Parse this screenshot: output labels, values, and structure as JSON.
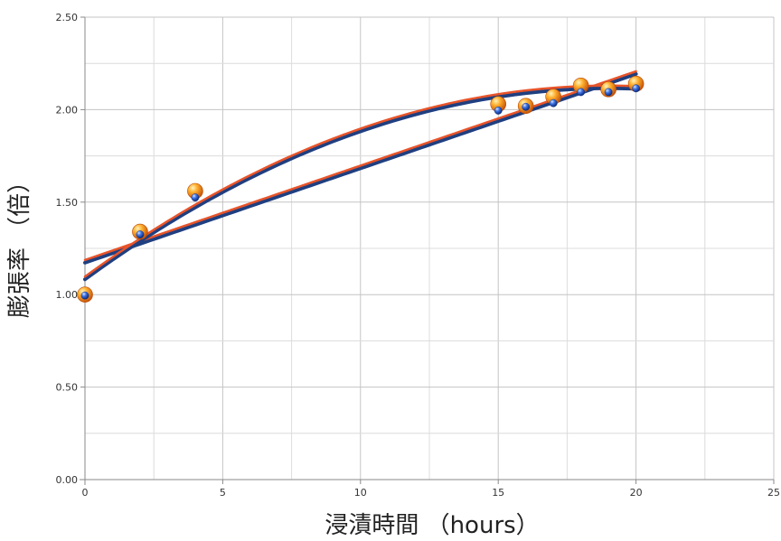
{
  "chart_data": {
    "type": "scatter",
    "xlabel": "浸漬時間 （hours）",
    "ylabel": "膨張率 （倍）",
    "xlim": [
      0,
      25
    ],
    "ylim": [
      0,
      2.5
    ],
    "x_ticks": [
      "0",
      "5",
      "10",
      "15",
      "20",
      "25"
    ],
    "y_ticks": [
      "0.00",
      "0.50",
      "1.00",
      "1.50",
      "2.00",
      "2.50"
    ],
    "grid": true,
    "minor_grid": true,
    "legend": "none",
    "series": [
      {
        "marker": "orange-sphere",
        "color": "#f5901e",
        "points": [
          {
            "x": 0,
            "y": 1.0
          },
          {
            "x": 2,
            "y": 1.34
          },
          {
            "x": 4,
            "y": 1.56
          },
          {
            "x": 15,
            "y": 2.03
          },
          {
            "x": 16,
            "y": 2.02
          },
          {
            "x": 17,
            "y": 2.07
          },
          {
            "x": 18,
            "y": 2.13
          },
          {
            "x": 19,
            "y": 2.11
          },
          {
            "x": 20,
            "y": 2.14
          }
        ]
      },
      {
        "marker": "blue-sphere",
        "color": "#2f5fcf",
        "points": [
          {
            "x": 0,
            "y": 1.0
          },
          {
            "x": 2,
            "y": 1.33
          },
          {
            "x": 4,
            "y": 1.53
          },
          {
            "x": 15,
            "y": 2.0
          },
          {
            "x": 16,
            "y": 2.02
          },
          {
            "x": 17,
            "y": 2.04
          },
          {
            "x": 18,
            "y": 2.1
          },
          {
            "x": 19,
            "y": 2.1
          },
          {
            "x": 20,
            "y": 2.12
          }
        ]
      }
    ],
    "trendlines": [
      {
        "kind": "linear",
        "color": "#1f3f80",
        "underlay": "#e8542a",
        "x_range": [
          0,
          20
        ],
        "y_at": [
          [
            0,
            1.18
          ],
          [
            20,
            2.2
          ]
        ]
      },
      {
        "kind": "polynomial",
        "color": "#1f3f80",
        "underlay": "#e8542a",
        "x_range": [
          0,
          20
        ],
        "y_at": [
          [
            0,
            1.09
          ],
          [
            10,
            1.89
          ],
          [
            20,
            2.12
          ]
        ]
      }
    ]
  }
}
